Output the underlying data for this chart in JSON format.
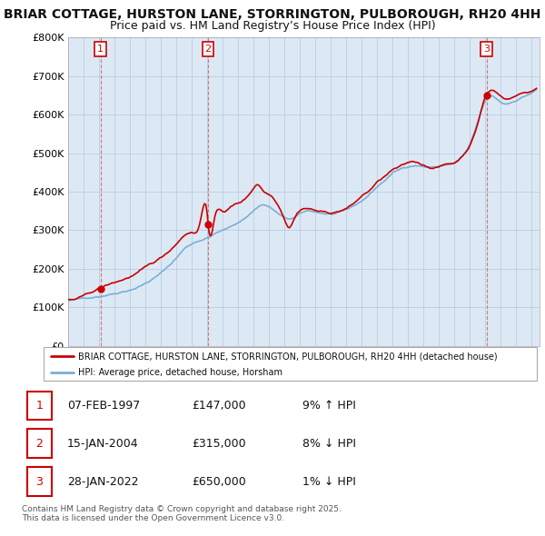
{
  "title": "BRIAR COTTAGE, HURSTON LANE, STORRINGTON, PULBOROUGH, RH20 4HH",
  "subtitle": "Price paid vs. HM Land Registry’s House Price Index (HPI)",
  "ylabel_ticks": [
    "£0",
    "£100K",
    "£200K",
    "£300K",
    "£400K",
    "£500K",
    "£600K",
    "£700K",
    "£800K"
  ],
  "ylim": [
    0,
    800000
  ],
  "xlim_start": 1995.0,
  "xlim_end": 2025.5,
  "legend_line1": "BRIAR COTTAGE, HURSTON LANE, STORRINGTON, PULBOROUGH, RH20 4HH (detached house)",
  "legend_line2": "HPI: Average price, detached house, Horsham",
  "sale1_date": 1997.1,
  "sale1_price": 147000,
  "sale1_label": "1",
  "sale2_date": 2004.05,
  "sale2_price": 315000,
  "sale2_label": "2",
  "sale3_date": 2022.07,
  "sale3_price": 650000,
  "sale3_label": "3",
  "table_rows": [
    [
      "1",
      "07-FEB-1997",
      "£147,000",
      "9% ↑ HPI"
    ],
    [
      "2",
      "15-JAN-2004",
      "£315,000",
      "8% ↓ HPI"
    ],
    [
      "3",
      "28-JAN-2022",
      "£650,000",
      "1% ↓ HPI"
    ]
  ],
  "footnote": "Contains HM Land Registry data © Crown copyright and database right 2025.\nThis data is licensed under the Open Government Licence v3.0.",
  "line_color_red": "#cc0000",
  "line_color_blue": "#7bafd4",
  "chart_bg": "#dce9f5",
  "background_color": "#ffffff",
  "grid_color": "#b0c8e0",
  "title_fontsize": 10.5,
  "subtitle_fontsize": 9.5
}
